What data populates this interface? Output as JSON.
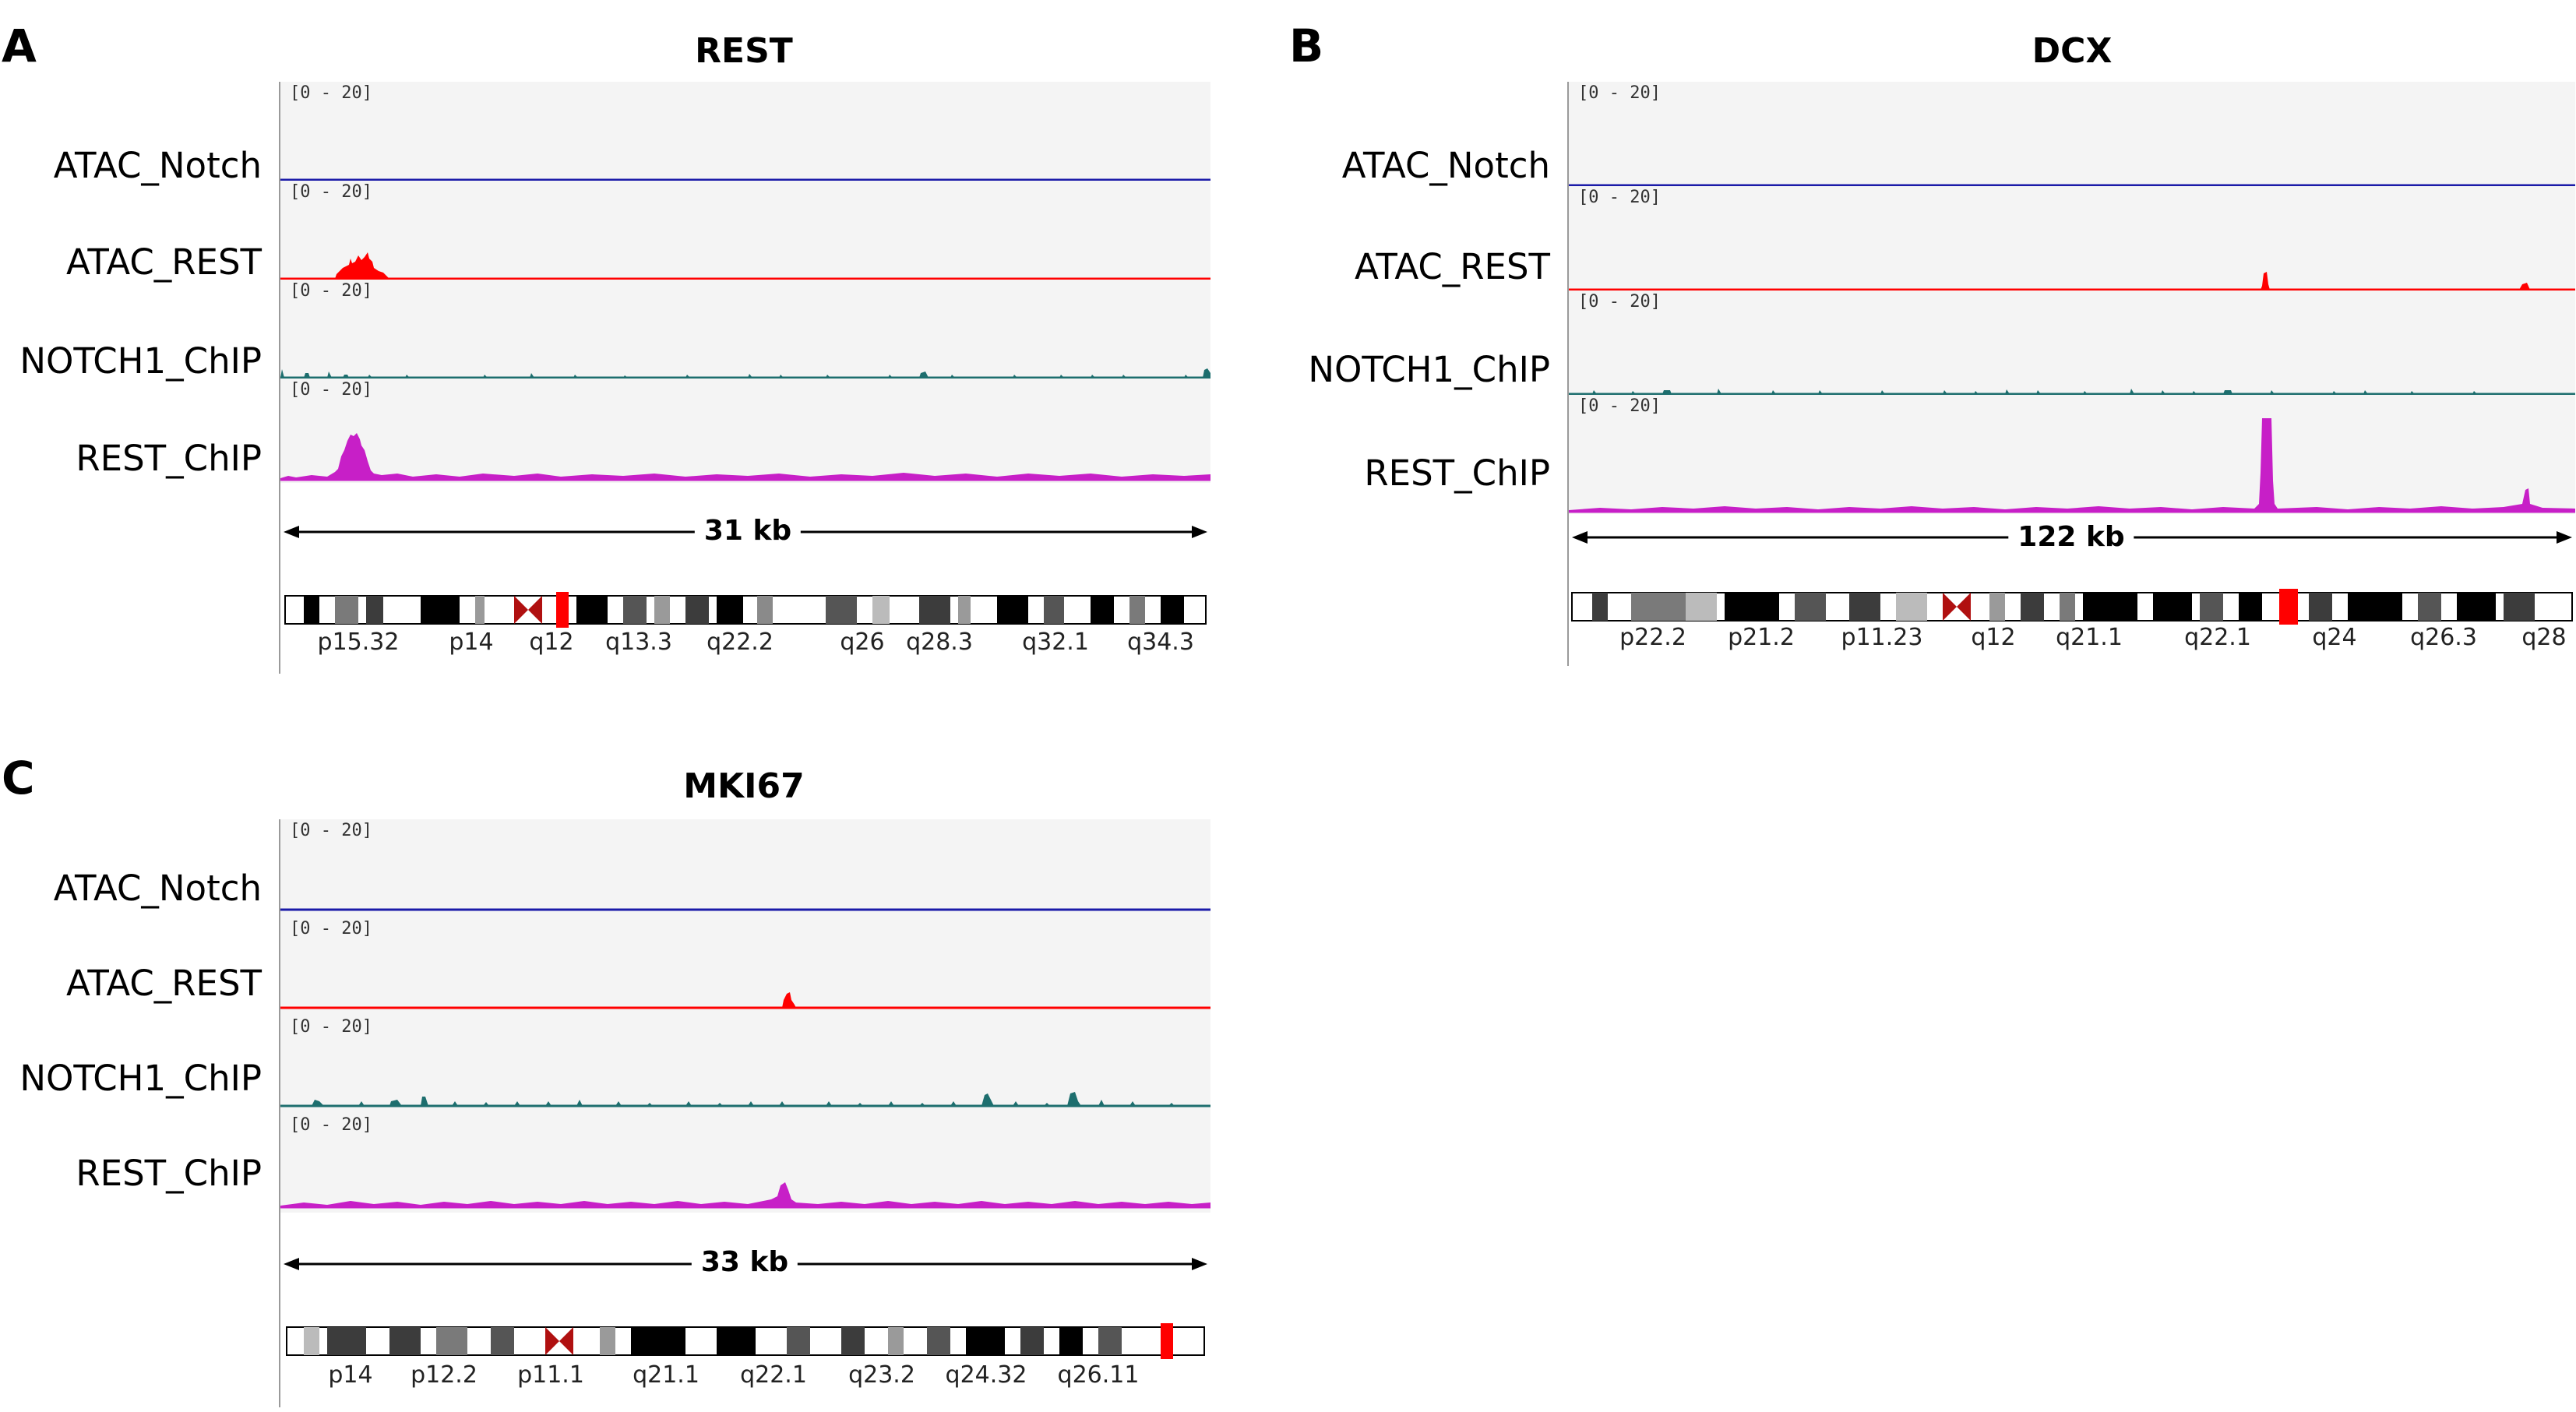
{
  "panels": [
    {
      "label": "A",
      "gene": "REST",
      "scale_text": "31 kb",
      "tracks": [
        {
          "name": "ATAC_Notch",
          "range": "[0 - 20]",
          "color": "#1a1aa8"
        },
        {
          "name": "ATAC_REST",
          "range": "[0 - 20]",
          "color": "#ff0000"
        },
        {
          "name": "NOTCH1_ChIP",
          "range": "[0 - 20]",
          "color": "#1d6e6e"
        },
        {
          "name": "REST_ChIP",
          "range": "[0 - 20]",
          "color": "#c71fc7"
        }
      ],
      "bands": [
        "p15.32",
        "p14",
        "q12",
        "q13.3",
        "q22.2",
        "q26",
        "q28.3",
        "q32.1",
        "q34.3"
      ]
    },
    {
      "label": "B",
      "gene": "DCX",
      "scale_text": "122 kb",
      "tracks": [
        {
          "name": "ATAC_Notch",
          "range": "[0 - 20]",
          "color": "#1a1aa8"
        },
        {
          "name": "ATAC_REST",
          "range": "[0 - 20]",
          "color": "#ff0000"
        },
        {
          "name": "NOTCH1_ChIP",
          "range": "[0 - 20]",
          "color": "#1d6e6e"
        },
        {
          "name": "REST_ChIP",
          "range": "[0 - 20]",
          "color": "#c71fc7"
        }
      ],
      "bands": [
        "p22.2",
        "p21.2",
        "p11.23",
        "q12",
        "q21.1",
        "q22.1",
        "q24",
        "q26.3",
        "q28"
      ]
    },
    {
      "label": "C",
      "gene": "MKI67",
      "scale_text": "33 kb",
      "tracks": [
        {
          "name": "ATAC_Notch",
          "range": "[0 - 20]",
          "color": "#1a1aa8"
        },
        {
          "name": "ATAC_REST",
          "range": "[0 - 20]",
          "color": "#ff0000"
        },
        {
          "name": "NOTCH1_ChIP",
          "range": "[0 - 20]",
          "color": "#1d6e6e"
        },
        {
          "name": "REST_ChIP",
          "range": "[0 - 20]",
          "color": "#c71fc7"
        }
      ],
      "bands": [
        "p14",
        "p12.2",
        "p11.1",
        "q21.1",
        "q22.1",
        "q23.2",
        "q24.32",
        "q26.11"
      ]
    }
  ]
}
